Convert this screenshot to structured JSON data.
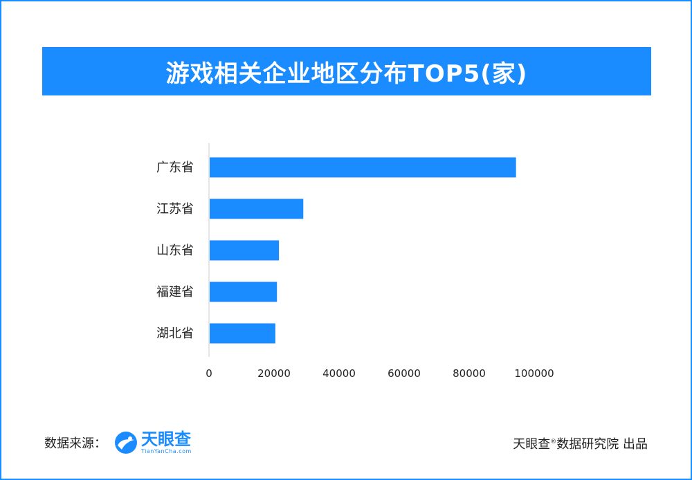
{
  "header": {
    "title": "游戏相关企业地区分布TOP5(家)"
  },
  "chart_data": {
    "type": "bar",
    "orientation": "horizontal",
    "categories": [
      "广东省",
      "江苏省",
      "山东省",
      "福建省",
      "湖北省"
    ],
    "values": [
      94400,
      29000,
      21500,
      20900,
      20400
    ],
    "x_ticks": [
      "0",
      "20000",
      "40000",
      "60000",
      "80000",
      "100000"
    ],
    "xlim": [
      0,
      100000
    ],
    "bar_color": "#1a8cff",
    "grid": false
  },
  "footer": {
    "source_label": "数据来源：",
    "logo_name": "天眼查",
    "logo_url_text": "TianYanCha.com",
    "credit_brand": "天眼查",
    "credit_mark": "®",
    "credit_text": "数据研究院 出品"
  },
  "colors": {
    "accent": "#1a8cff",
    "text": "#222222",
    "axis": "#cccccc"
  }
}
